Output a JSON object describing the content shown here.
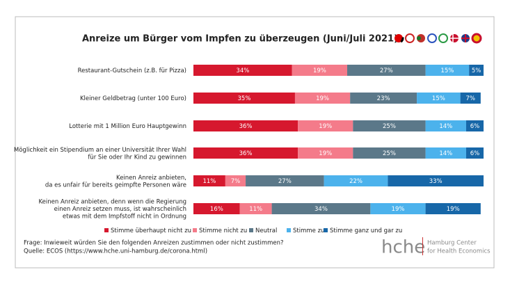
{
  "chart_data": {
    "type": "stacked-bar-horizontal",
    "title": "Anreize um Bürger vom Impfen zu überzeugen (Juni/Juli 2021)",
    "categories": [
      "Restaurant-Gutschein (z.B. für Pizza)",
      "Kleiner Geldbetrag (unter 100 Euro)",
      "Lotterie mit 1 Million Euro Hauptgewinn",
      "Möglichkeit ein Stipendium an einer Universität Ihrer Wahl\nfür Sie oder Ihr Kind zu gewinnen",
      "Keinen Anreiz anbieten,\nda es unfair für bereits geimpfte Personen wäre",
      "Keinen Anreiz anbieten, denn wenn die Regierung\neinen Anreiz setzen muss, ist wahrscheinlich\netwas mit dem Impfstoff nicht in Ordnung"
    ],
    "series": [
      {
        "name": "Stimme überhaupt nicht zu",
        "color": "#d6182e",
        "values": [
          34,
          35,
          36,
          36,
          11,
          16
        ],
        "value_labels": [
          "34%",
          "35%",
          "36%",
          "36%",
          "11%",
          "16%"
        ]
      },
      {
        "name": "Stimme nicht zu",
        "color": "#f47b8a",
        "values": [
          19,
          19,
          19,
          19,
          7,
          11
        ],
        "value_labels": [
          "19%",
          "19%",
          "19%",
          "19%",
          "7%",
          "11%"
        ]
      },
      {
        "name": "Neutral",
        "color": "#5b7889",
        "values": [
          27,
          23,
          25,
          25,
          27,
          34
        ],
        "value_labels": [
          "27%",
          "23%",
          "25%",
          "25%",
          "27%",
          "34%"
        ]
      },
      {
        "name": "Stimme zu",
        "color": "#4cb2ec",
        "values": [
          15,
          15,
          14,
          14,
          22,
          19
        ],
        "value_labels": [
          "15%",
          "15%",
          "14%",
          "14%",
          "22%",
          "19%"
        ]
      },
      {
        "name": "Stimme ganz und gar zu",
        "color": "#1767a8",
        "values": [
          5,
          7,
          6,
          6,
          33,
          19
        ],
        "value_labels": [
          "5%",
          "7%",
          "6%",
          "6%",
          "33%",
          "19%"
        ]
      }
    ],
    "xlim": [
      0,
      100
    ],
    "legend": "bottom",
    "notes": [
      "Frage: Inwieweit würden Sie den folgenden Anreizen zustimmen oder nicht zustimmen?",
      "Quelle: ECOS (https://www.hche.uni-hamburg.de/corona.html)"
    ],
    "logo": {
      "text": "hche",
      "lines": [
        "Hamburg Center",
        "for Health Economics"
      ]
    }
  }
}
